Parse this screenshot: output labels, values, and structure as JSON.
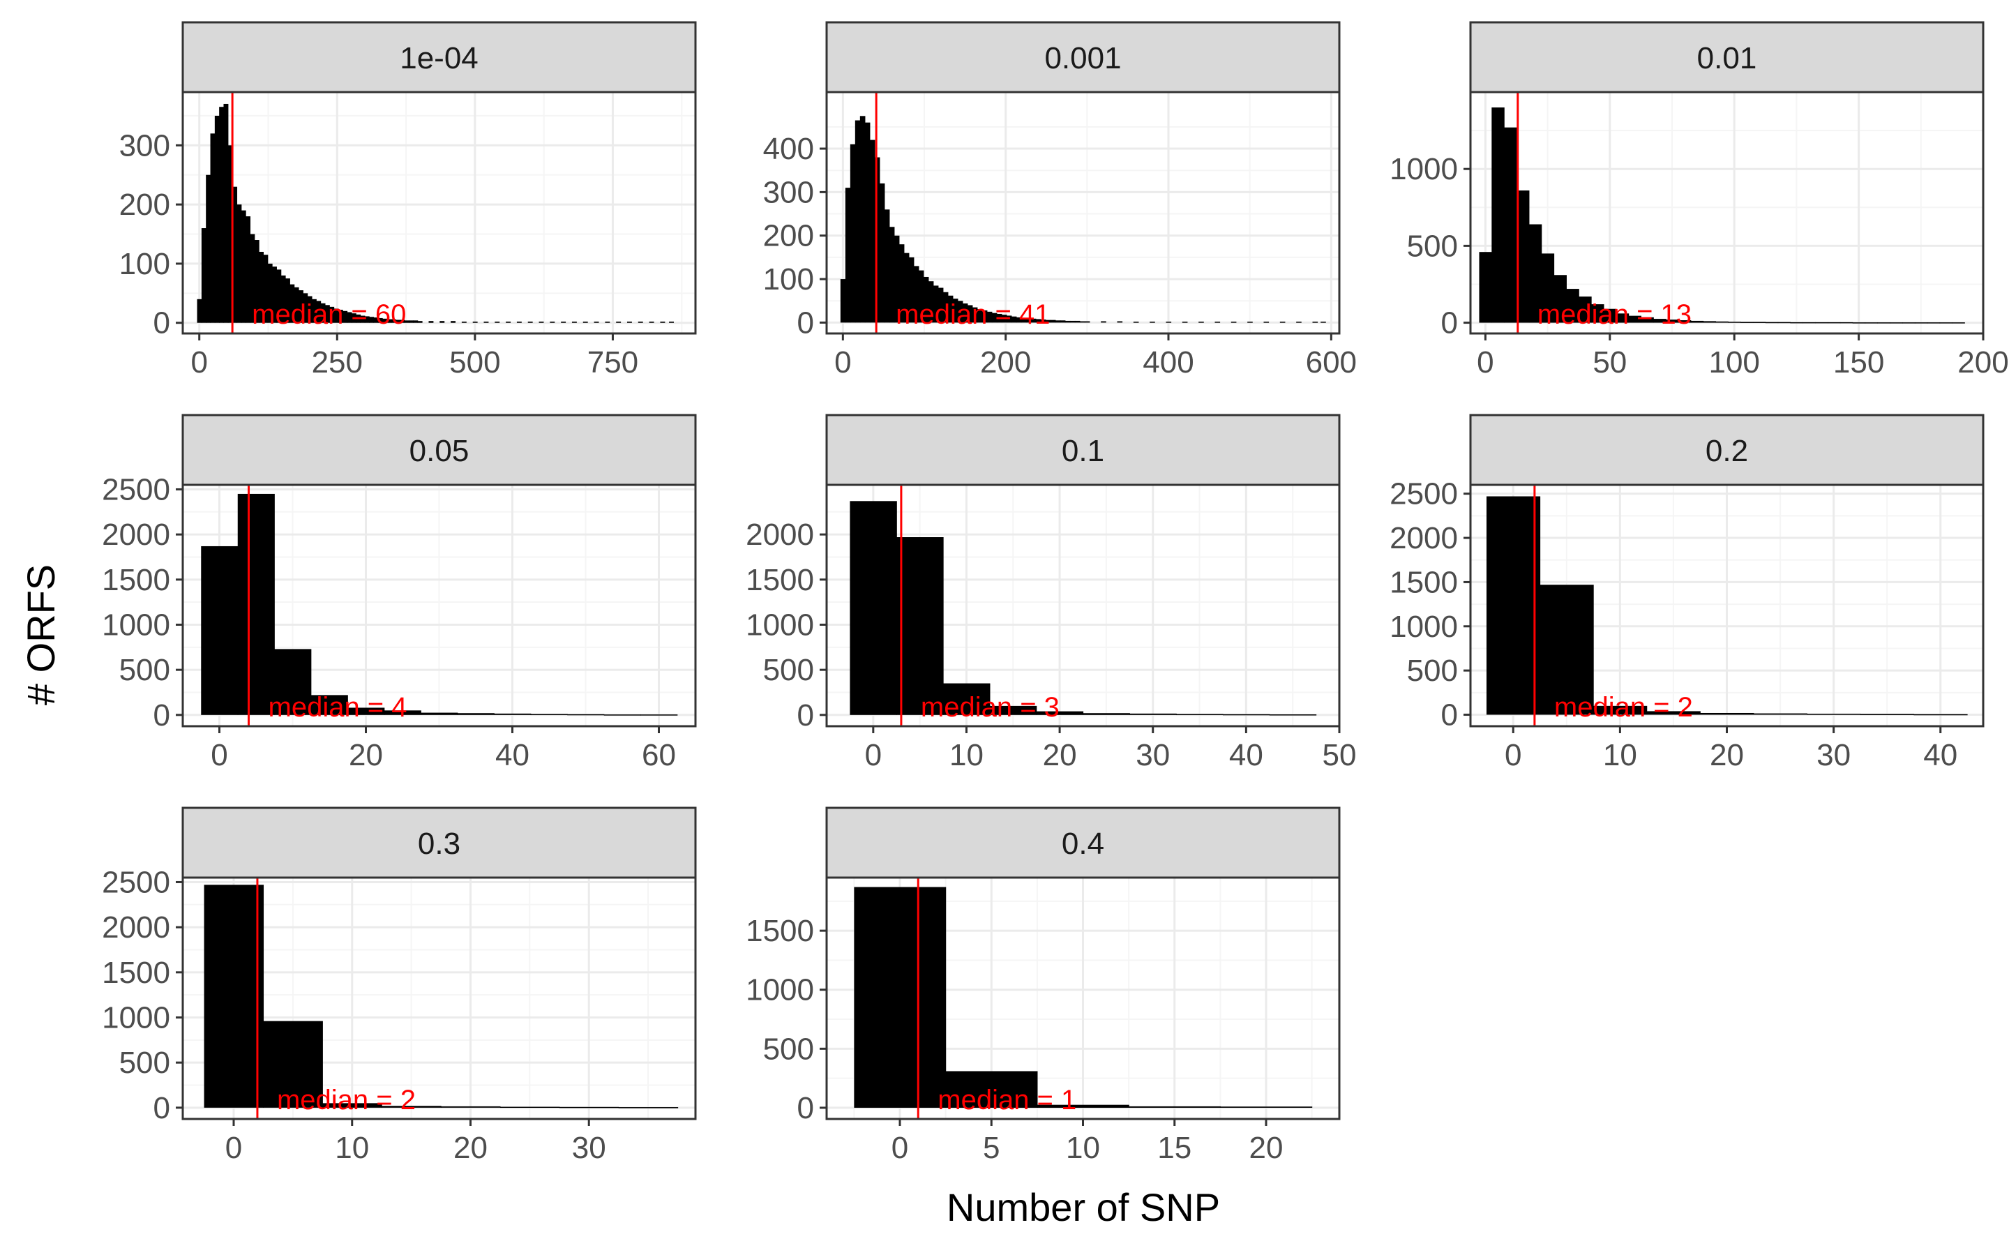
{
  "chart_data": {
    "type": "histogram_facets",
    "xlabel": "Number of SNP",
    "ylabel": "# ORFS",
    "colors": {
      "bars": "#000000",
      "median_line": "#ff0000",
      "median_text": "#ff0000",
      "strip_fill": "#d9d9d9",
      "panel_border": "#333333",
      "grid_major": "#ebebeb",
      "grid_minor": "#f5f5f5",
      "axis_text": "#4d4d4d"
    },
    "facets": [
      {
        "label": "1e-04",
        "xlim": [
          -30,
          900
        ],
        "ylim": [
          -18,
          390
        ],
        "xticks": [
          0,
          250,
          500,
          750
        ],
        "xtick_labels": [
          "0",
          "250",
          "500",
          "750"
        ],
        "yticks": [
          0,
          100,
          200,
          300
        ],
        "ytick_labels": [
          "0",
          "100",
          "200",
          "300"
        ],
        "median": 60,
        "median_label": "median = 60",
        "bin_width": 8,
        "bins": [
          [
            0,
            40
          ],
          [
            8,
            160
          ],
          [
            16,
            250
          ],
          [
            24,
            320
          ],
          [
            32,
            350
          ],
          [
            40,
            365
          ],
          [
            48,
            370
          ],
          [
            56,
            300
          ],
          [
            64,
            230
          ],
          [
            72,
            200
          ],
          [
            80,
            190
          ],
          [
            88,
            180
          ],
          [
            96,
            150
          ],
          [
            104,
            140
          ],
          [
            112,
            120
          ],
          [
            120,
            115
          ],
          [
            128,
            100
          ],
          [
            136,
            95
          ],
          [
            144,
            90
          ],
          [
            152,
            80
          ],
          [
            160,
            75
          ],
          [
            168,
            65
          ],
          [
            176,
            60
          ],
          [
            184,
            55
          ],
          [
            192,
            50
          ],
          [
            200,
            45
          ],
          [
            208,
            40
          ],
          [
            216,
            37
          ],
          [
            224,
            33
          ],
          [
            232,
            30
          ],
          [
            240,
            27
          ],
          [
            248,
            24
          ],
          [
            256,
            22
          ],
          [
            264,
            20
          ],
          [
            272,
            18
          ],
          [
            280,
            16
          ],
          [
            288,
            14
          ],
          [
            296,
            12
          ],
          [
            304,
            11
          ],
          [
            312,
            10
          ],
          [
            320,
            9
          ],
          [
            328,
            8
          ],
          [
            336,
            7
          ],
          [
            344,
            6
          ],
          [
            352,
            6
          ],
          [
            360,
            5
          ],
          [
            368,
            5
          ],
          [
            376,
            4
          ],
          [
            384,
            4
          ],
          [
            392,
            4
          ],
          [
            400,
            3
          ],
          [
            420,
            3
          ],
          [
            440,
            3
          ],
          [
            460,
            3
          ],
          [
            480,
            2
          ],
          [
            500,
            2
          ],
          [
            520,
            2
          ],
          [
            540,
            2
          ],
          [
            560,
            2
          ],
          [
            580,
            2
          ],
          [
            600,
            2
          ],
          [
            620,
            2
          ],
          [
            640,
            2
          ],
          [
            660,
            2
          ],
          [
            680,
            2
          ],
          [
            700,
            2
          ],
          [
            720,
            2
          ],
          [
            740,
            2
          ],
          [
            760,
            2
          ],
          [
            780,
            2
          ],
          [
            800,
            2
          ],
          [
            820,
            2
          ],
          [
            840,
            2
          ],
          [
            856,
            2
          ]
        ]
      },
      {
        "label": "0.001",
        "xlim": [
          -20,
          610
        ],
        "ylim": [
          -25,
          530
        ],
        "xticks": [
          0,
          200,
          400,
          600
        ],
        "xtick_labels": [
          "0",
          "200",
          "400",
          "600"
        ],
        "yticks": [
          0,
          100,
          200,
          300,
          400
        ],
        "ytick_labels": [
          "0",
          "100",
          "200",
          "300",
          "400"
        ],
        "median": 41,
        "median_label": "median = 41",
        "bin_width": 6,
        "bins": [
          [
            0,
            100
          ],
          [
            6,
            310
          ],
          [
            12,
            410
          ],
          [
            18,
            465
          ],
          [
            24,
            475
          ],
          [
            30,
            460
          ],
          [
            36,
            420
          ],
          [
            42,
            380
          ],
          [
            48,
            320
          ],
          [
            54,
            260
          ],
          [
            60,
            220
          ],
          [
            66,
            200
          ],
          [
            72,
            180
          ],
          [
            78,
            160
          ],
          [
            84,
            150
          ],
          [
            90,
            130
          ],
          [
            96,
            120
          ],
          [
            102,
            105
          ],
          [
            108,
            95
          ],
          [
            114,
            85
          ],
          [
            120,
            80
          ],
          [
            126,
            70
          ],
          [
            132,
            62
          ],
          [
            138,
            55
          ],
          [
            144,
            50
          ],
          [
            150,
            44
          ],
          [
            156,
            40
          ],
          [
            162,
            35
          ],
          [
            168,
            31
          ],
          [
            174,
            28
          ],
          [
            180,
            25
          ],
          [
            186,
            22
          ],
          [
            192,
            20
          ],
          [
            198,
            18
          ],
          [
            204,
            16
          ],
          [
            210,
            14
          ],
          [
            216,
            12
          ],
          [
            222,
            11
          ],
          [
            228,
            10
          ],
          [
            234,
            9
          ],
          [
            240,
            8
          ],
          [
            246,
            7
          ],
          [
            252,
            6
          ],
          [
            258,
            6
          ],
          [
            264,
            5
          ],
          [
            270,
            5
          ],
          [
            276,
            4
          ],
          [
            282,
            4
          ],
          [
            288,
            4
          ],
          [
            294,
            3
          ],
          [
            300,
            3
          ],
          [
            320,
            3
          ],
          [
            340,
            3
          ],
          [
            360,
            2
          ],
          [
            380,
            2
          ],
          [
            400,
            2
          ],
          [
            420,
            2
          ],
          [
            440,
            2
          ],
          [
            460,
            2
          ],
          [
            480,
            2
          ],
          [
            500,
            2
          ],
          [
            520,
            2
          ],
          [
            540,
            2
          ],
          [
            560,
            2
          ],
          [
            580,
            2
          ],
          [
            590,
            2
          ]
        ]
      },
      {
        "label": "0.01",
        "xlim": [
          -6,
          200
        ],
        "ylim": [
          -70,
          1500
        ],
        "xticks": [
          0,
          50,
          100,
          150,
          200
        ],
        "xtick_labels": [
          "0",
          "50",
          "100",
          "150",
          "200"
        ],
        "yticks": [
          0,
          500,
          1000
        ],
        "ytick_labels": [
          "0",
          "500",
          "1000"
        ],
        "median": 13,
        "median_label": "median = 13",
        "bin_width": 5,
        "bins": [
          [
            0,
            460
          ],
          [
            5,
            1400
          ],
          [
            10,
            1270
          ],
          [
            15,
            860
          ],
          [
            20,
            640
          ],
          [
            25,
            450
          ],
          [
            30,
            310
          ],
          [
            35,
            220
          ],
          [
            40,
            170
          ],
          [
            45,
            120
          ],
          [
            50,
            90
          ],
          [
            55,
            60
          ],
          [
            60,
            45
          ],
          [
            65,
            35
          ],
          [
            70,
            25
          ],
          [
            75,
            20
          ],
          [
            80,
            16
          ],
          [
            85,
            12
          ],
          [
            90,
            10
          ],
          [
            95,
            8
          ],
          [
            100,
            6
          ],
          [
            105,
            5
          ],
          [
            110,
            5
          ],
          [
            115,
            4
          ],
          [
            120,
            4
          ],
          [
            125,
            3
          ],
          [
            130,
            3
          ],
          [
            135,
            3
          ],
          [
            140,
            3
          ],
          [
            145,
            3
          ],
          [
            150,
            2
          ],
          [
            155,
            2
          ],
          [
            160,
            2
          ],
          [
            165,
            2
          ],
          [
            170,
            2
          ],
          [
            175,
            2
          ],
          [
            180,
            2
          ],
          [
            185,
            2
          ],
          [
            190,
            2
          ]
        ]
      },
      {
        "label": "0.05",
        "xlim": [
          -5,
          65
        ],
        "ylim": [
          -125,
          2550
        ],
        "xticks": [
          0,
          20,
          40,
          60
        ],
        "xtick_labels": [
          "0",
          "20",
          "40",
          "60"
        ],
        "yticks": [
          0,
          500,
          1000,
          1500,
          2000,
          2500
        ],
        "ytick_labels": [
          "0",
          "500",
          "1000",
          "1500",
          "2000",
          "2500"
        ],
        "median": 4,
        "median_label": "median = 4",
        "bin_width": 5,
        "bins": [
          [
            0,
            1870
          ],
          [
            5,
            2450
          ],
          [
            10,
            730
          ],
          [
            15,
            220
          ],
          [
            20,
            80
          ],
          [
            25,
            50
          ],
          [
            30,
            25
          ],
          [
            35,
            20
          ],
          [
            40,
            15
          ],
          [
            45,
            10
          ],
          [
            50,
            8
          ],
          [
            55,
            5
          ],
          [
            60,
            5
          ]
        ]
      },
      {
        "label": "0.1",
        "xlim": [
          -5,
          50
        ],
        "ylim": [
          -125,
          2550
        ],
        "xticks": [
          0,
          10,
          20,
          30,
          40,
          50
        ],
        "xtick_labels": [
          "0",
          "10",
          "20",
          "30",
          "40",
          "50"
        ],
        "yticks": [
          0,
          500,
          1000,
          1500,
          2000
        ],
        "ytick_labels": [
          "0",
          "500",
          "1000",
          "1500",
          "2000"
        ],
        "median": 3,
        "median_label": "median = 3",
        "bin_width": 5,
        "bins": [
          [
            0,
            2370
          ],
          [
            5,
            1970
          ],
          [
            10,
            350
          ],
          [
            15,
            100
          ],
          [
            20,
            40
          ],
          [
            25,
            20
          ],
          [
            30,
            15
          ],
          [
            35,
            10
          ],
          [
            40,
            8
          ],
          [
            45,
            6
          ]
        ]
      },
      {
        "label": "0.2",
        "xlim": [
          -4,
          44
        ],
        "ylim": [
          -130,
          2600
        ],
        "xticks": [
          0,
          10,
          20,
          30,
          40
        ],
        "xtick_labels": [
          "0",
          "10",
          "20",
          "30",
          "40"
        ],
        "yticks": [
          0,
          500,
          1000,
          1500,
          2000,
          2500
        ],
        "ytick_labels": [
          "0",
          "500",
          "1000",
          "1500",
          "2000",
          "2500"
        ],
        "median": 2,
        "median_label": "median = 2",
        "bin_width": 5,
        "bins": [
          [
            0,
            2470
          ],
          [
            5,
            1470
          ],
          [
            10,
            100
          ],
          [
            15,
            40
          ],
          [
            20,
            20
          ],
          [
            25,
            15
          ],
          [
            30,
            10
          ],
          [
            35,
            8
          ],
          [
            40,
            6
          ]
        ]
      },
      {
        "label": "0.3",
        "xlim": [
          -4.3,
          39
        ],
        "ylim": [
          -125,
          2550
        ],
        "xticks": [
          0,
          10,
          20,
          30
        ],
        "xtick_labels": [
          "0",
          "10",
          "20",
          "30"
        ],
        "yticks": [
          0,
          500,
          1000,
          1500,
          2000,
          2500
        ],
        "ytick_labels": [
          "0",
          "500",
          "1000",
          "1500",
          "2000",
          "2500"
        ],
        "median": 2,
        "median_label": "median = 2",
        "bin_width": 5,
        "bins": [
          [
            0,
            2470
          ],
          [
            5,
            960
          ],
          [
            10,
            50
          ],
          [
            15,
            20
          ],
          [
            20,
            15
          ],
          [
            25,
            10
          ],
          [
            30,
            8
          ],
          [
            35,
            6
          ]
        ]
      },
      {
        "label": "0.4",
        "xlim": [
          -4,
          24
        ],
        "ylim": [
          -95,
          1950
        ],
        "xticks": [
          0,
          5,
          10,
          15,
          20
        ],
        "xtick_labels": [
          "0",
          "5",
          "10",
          "15",
          "20"
        ],
        "yticks": [
          0,
          500,
          1000,
          1500
        ],
        "ytick_labels": [
          "0",
          "500",
          "1000",
          "1500"
        ],
        "median": 1,
        "median_label": "median = 1",
        "bin_width": 5,
        "bins": [
          [
            0,
            1870
          ],
          [
            5,
            310
          ],
          [
            10,
            25
          ],
          [
            15,
            12
          ],
          [
            20,
            10
          ]
        ]
      }
    ]
  }
}
